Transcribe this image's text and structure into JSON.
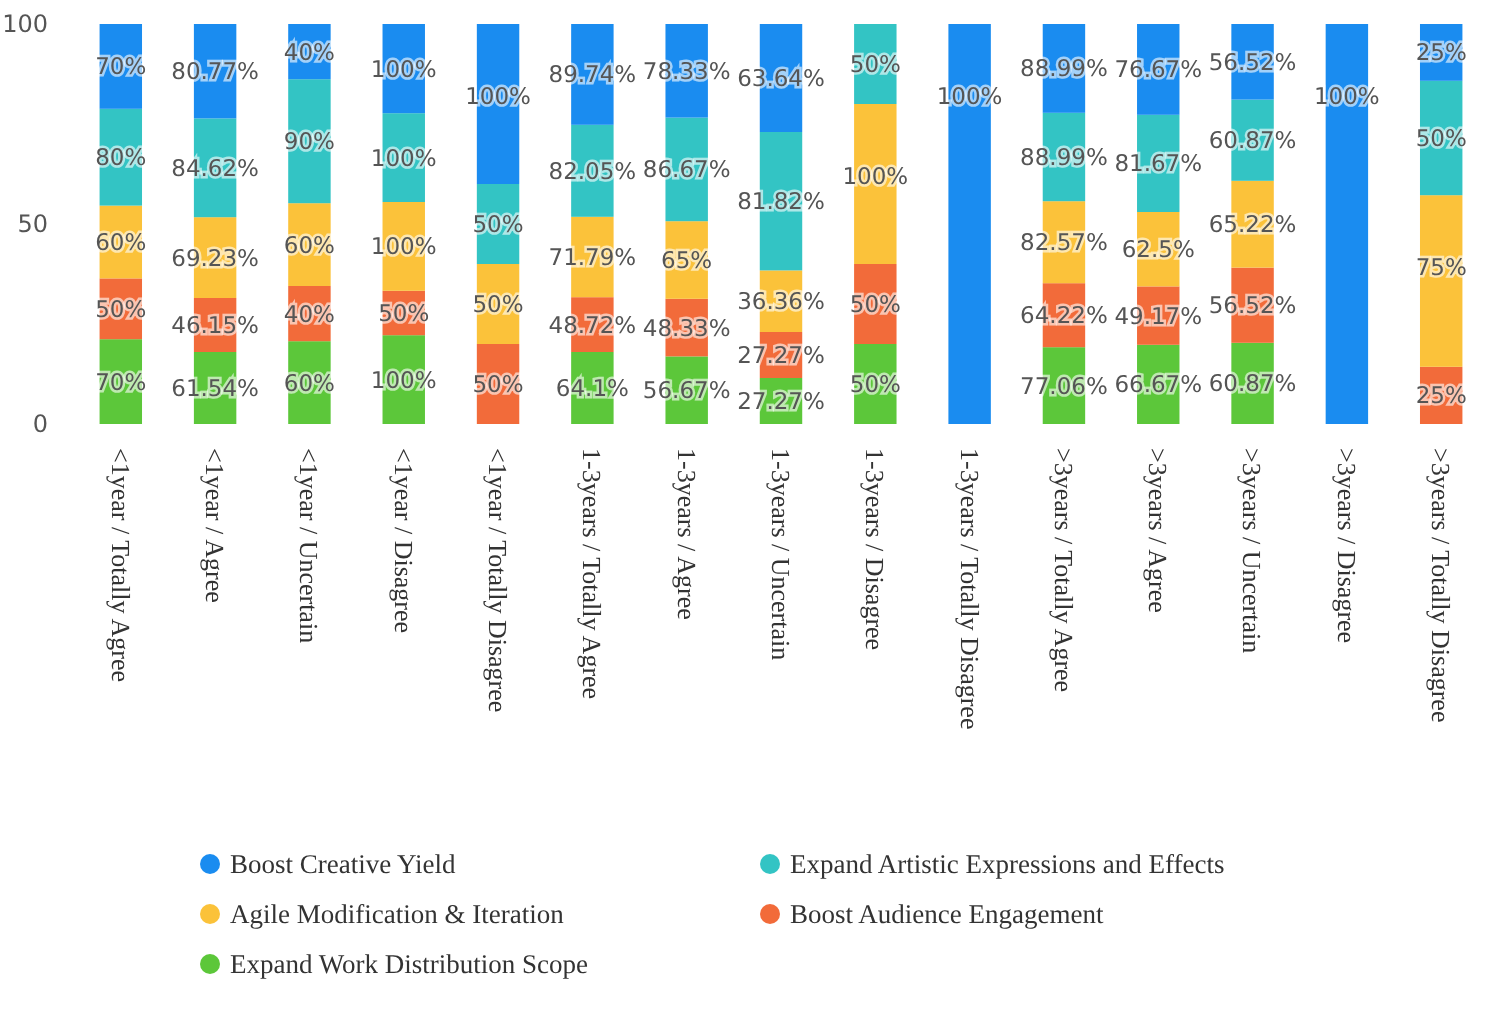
{
  "chart_data": {
    "type": "bar",
    "stacked": true,
    "categories": [
      "<1year / Totally Agree",
      "<1year / Agree",
      "<1year / Uncertain",
      "<1year / Disagree",
      "<1year / Totally Disagree",
      "1-3years / Totally Agree",
      "1-3years / Agree",
      "1-3years / Uncertain",
      "1-3years / Disagree",
      "1-3years / Totally Disagree",
      ">3years / Totally Agree",
      ">3years / Agree",
      ">3years / Uncertain",
      ">3years / Disagree",
      ">3years / Totally Disagree"
    ],
    "ylim": [
      0,
      100
    ],
    "yticks": [
      0,
      50,
      100
    ],
    "grid": false,
    "legend": "bottom",
    "series": [
      {
        "name": "Expand Work Distribution Scope",
        "color": "#5cc73a",
        "values": [
          21.2,
          18.0,
          20.7,
          22.2,
          null,
          18.0,
          16.9,
          11.5,
          20,
          null,
          19.2,
          19.8,
          20.3,
          null,
          null
        ]
      },
      {
        "name": "Boost Audience Engagement",
        "color": "#f26b3a",
        "values": [
          15.2,
          13.5,
          13.8,
          11.1,
          20,
          13.7,
          14.4,
          11.5,
          20,
          null,
          16.0,
          14.6,
          18.8,
          null,
          14.3
        ]
      },
      {
        "name": "Agile Modification & Iteration",
        "color": "#fbc23a",
        "values": [
          18.2,
          20.2,
          20.7,
          22.2,
          20,
          20.1,
          19.4,
          15.4,
          40,
          null,
          20.5,
          18.6,
          21.7,
          null,
          42.9
        ]
      },
      {
        "name": "Expand Artistic Expressions and Effects",
        "color": "#33c4c4",
        "values": [
          24.2,
          24.7,
          31.0,
          22.2,
          20,
          23.0,
          25.9,
          34.6,
          20,
          null,
          22.1,
          24.3,
          20.3,
          null,
          28.6
        ]
      },
      {
        "name": "Boost Creative Yield",
        "color": "#1a8cf0",
        "values": [
          21.2,
          23.6,
          13.8,
          22.3,
          40,
          25.2,
          23.4,
          27.0,
          null,
          100,
          22.2,
          22.7,
          18.9,
          100,
          14.2
        ]
      }
    ],
    "annotations": [
      {
        "text": "70%",
        "x": "<1year / Totally Agree",
        "y": 21.2
      },
      {
        "text": "50%",
        "x": "<1year / Totally Agree",
        "y": 36.4
      },
      {
        "text": "60%",
        "x": "<1year / Totally Agree",
        "y": 54.6
      },
      {
        "text": "80%",
        "x": "<1year / Totally Agree",
        "y": 78.8
      },
      {
        "text": "70%",
        "x": "<1year / Totally Agree",
        "y": 100
      },
      {
        "text": "61.54%",
        "x": "<1year / Agree",
        "y": 18.0
      },
      {
        "text": "46.15%",
        "x": "<1year / Agree",
        "y": 31.5
      },
      {
        "text": "69.23%",
        "x": "<1year / Agree",
        "y": 51.7
      },
      {
        "text": "84.62%",
        "x": "<1year / Agree",
        "y": 76.4
      },
      {
        "text": "80.77%",
        "x": "<1year / Agree",
        "y": 100
      },
      {
        "text": "60%",
        "x": "<1year / Uncertain",
        "y": 20.7
      },
      {
        "text": "40%",
        "x": "<1year / Uncertain",
        "y": 34.5
      },
      {
        "text": "60%",
        "x": "<1year / Uncertain",
        "y": 55.2
      },
      {
        "text": "90%",
        "x": "<1year / Uncertain",
        "y": 86.2
      },
      {
        "text": "40%",
        "x": "<1year / Uncertain",
        "y": 100
      },
      {
        "text": "100%",
        "x": "<1year / Disagree",
        "y": 22.2
      },
      {
        "text": "50%",
        "x": "<1year / Disagree",
        "y": 33.3
      },
      {
        "text": "100%",
        "x": "<1year / Disagree",
        "y": 55.5
      },
      {
        "text": "100%",
        "x": "<1year / Disagree",
        "y": 77.7
      },
      {
        "text": "100%",
        "x": "<1year / Disagree",
        "y": 100
      },
      {
        "text": "50%",
        "x": "<1year / Totally Disagree",
        "y": 20
      },
      {
        "text": "50%",
        "x": "<1year / Totally Disagree",
        "y": 40
      },
      {
        "text": "50%",
        "x": "<1year / Totally Disagree",
        "y": 60
      },
      {
        "text": "100%",
        "x": "<1year / Totally Disagree",
        "y": 100
      },
      {
        "text": "64.1%",
        "x": "1-3years / Totally Agree",
        "y": 18.0
      },
      {
        "text": "48.72%",
        "x": "1-3years / Totally Agree",
        "y": 31.7
      },
      {
        "text": "71.79%",
        "x": "1-3years / Totally Agree",
        "y": 51.8
      },
      {
        "text": "82.05%",
        "x": "1-3years / Totally Agree",
        "y": 74.8
      },
      {
        "text": "89.74%",
        "x": "1-3years / Totally Agree",
        "y": 100
      },
      {
        "text": "56.67%",
        "x": "1-3years / Agree",
        "y": 16.9
      },
      {
        "text": "48.33%",
        "x": "1-3years / Agree",
        "y": 31.3
      },
      {
        "text": "65%",
        "x": "1-3years / Agree",
        "y": 50.7
      },
      {
        "text": "86.67%",
        "x": "1-3years / Agree",
        "y": 76.6
      },
      {
        "text": "78.33%",
        "x": "1-3years / Agree",
        "y": 100
      },
      {
        "text": "27.27%",
        "x": "1-3years / Uncertain",
        "y": 11.5
      },
      {
        "text": "27.27%",
        "x": "1-3years / Uncertain",
        "y": 23.0
      },
      {
        "text": "36.36%",
        "x": "1-3years / Uncertain",
        "y": 38.4
      },
      {
        "text": "81.82%",
        "x": "1-3years / Uncertain",
        "y": 73.0
      },
      {
        "text": "63.64%",
        "x": "1-3years / Uncertain",
        "y": 100
      },
      {
        "text": "50%",
        "x": "1-3years / Disagree",
        "y": 20
      },
      {
        "text": "50%",
        "x": "1-3years / Disagree",
        "y": 40
      },
      {
        "text": "100%",
        "x": "1-3years / Disagree",
        "y": 80
      },
      {
        "text": "50%",
        "x": "1-3years / Disagree",
        "y": 100
      },
      {
        "text": "100%",
        "x": "1-3years / Totally Disagree",
        "y": 100
      },
      {
        "text": "77.06%",
        "x": ">3years / Totally Agree",
        "y": 19.2
      },
      {
        "text": "64.22%",
        "x": ">3years / Totally Agree",
        "y": 35.2
      },
      {
        "text": "82.57%",
        "x": ">3years / Totally Agree",
        "y": 55.7
      },
      {
        "text": "88.99%",
        "x": ">3years / Totally Agree",
        "y": 77.8
      },
      {
        "text": "88.99%",
        "x": ">3years / Totally Agree",
        "y": 100
      },
      {
        "text": "66.67%",
        "x": ">3years / Agree",
        "y": 19.8
      },
      {
        "text": "49.17%",
        "x": ">3years / Agree",
        "y": 34.4
      },
      {
        "text": "62.5%",
        "x": ">3years / Agree",
        "y": 53.0
      },
      {
        "text": "81.67%",
        "x": ">3years / Agree",
        "y": 77.3
      },
      {
        "text": "76.67%",
        "x": ">3years / Agree",
        "y": 100
      },
      {
        "text": "60.87%",
        "x": ">3years / Uncertain",
        "y": 20.3
      },
      {
        "text": "56.52%",
        "x": ">3years / Uncertain",
        "y": 39.1
      },
      {
        "text": "65.22%",
        "x": ">3years / Uncertain",
        "y": 60.8
      },
      {
        "text": "60.87%",
        "x": ">3years / Uncertain",
        "y": 81.1
      },
      {
        "text": "56.52%",
        "x": ">3years / Uncertain",
        "y": 100
      },
      {
        "text": "100%",
        "x": ">3years / Disagree",
        "y": 100
      },
      {
        "text": "25%",
        "x": ">3years / Totally Disagree",
        "y": 14.3
      },
      {
        "text": "75%",
        "x": ">3years / Totally Disagree",
        "y": 57.2
      },
      {
        "text": "50%",
        "x": ">3years / Totally Disagree",
        "y": 85.8
      },
      {
        "text": "25%",
        "x": ">3years / Totally Disagree",
        "y": 100
      }
    ]
  }
}
